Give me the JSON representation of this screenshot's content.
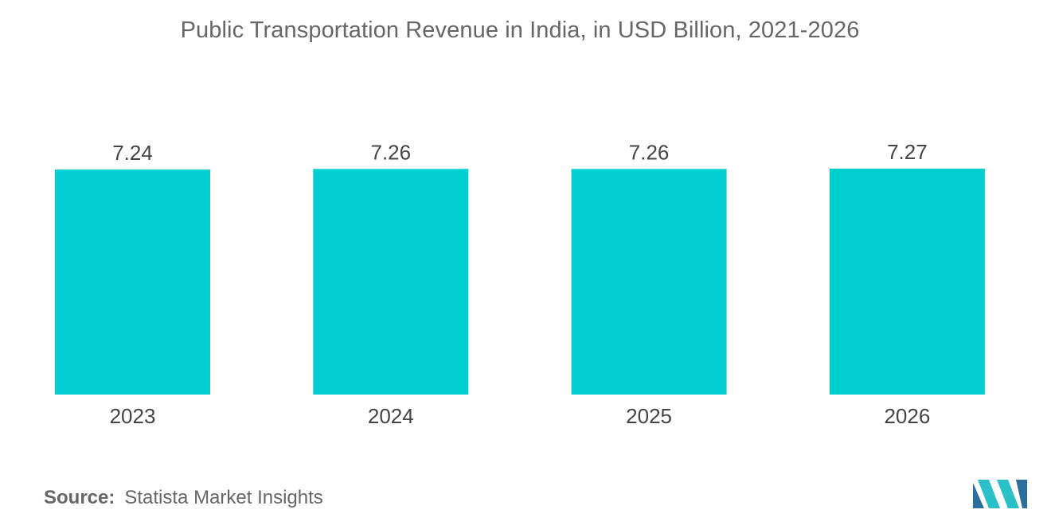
{
  "chart_data": {
    "type": "bar",
    "title": "Public Transportation Revenue in India, in USD Billion, 2021-2026",
    "categories": [
      "2023",
      "2024",
      "2025",
      "2026"
    ],
    "values": [
      7.24,
      7.26,
      7.26,
      7.27
    ],
    "value_labels": [
      "7.24",
      "7.26",
      "7.26",
      "7.27"
    ],
    "xlabel": "",
    "ylabel": "",
    "ylim": [
      0,
      7.27
    ],
    "grid": false,
    "legend": "none",
    "bar_color": "#00CED1"
  },
  "source": {
    "label": "Source:",
    "text": "Statista Market Insights"
  },
  "colors": {
    "bar": "#00CED1",
    "text": "#666666",
    "label": "#444444",
    "logo_dark": "#2D6E9E",
    "logo_light": "#2BC0C7"
  },
  "logo": {
    "icon": "mordor-logo-icon"
  }
}
